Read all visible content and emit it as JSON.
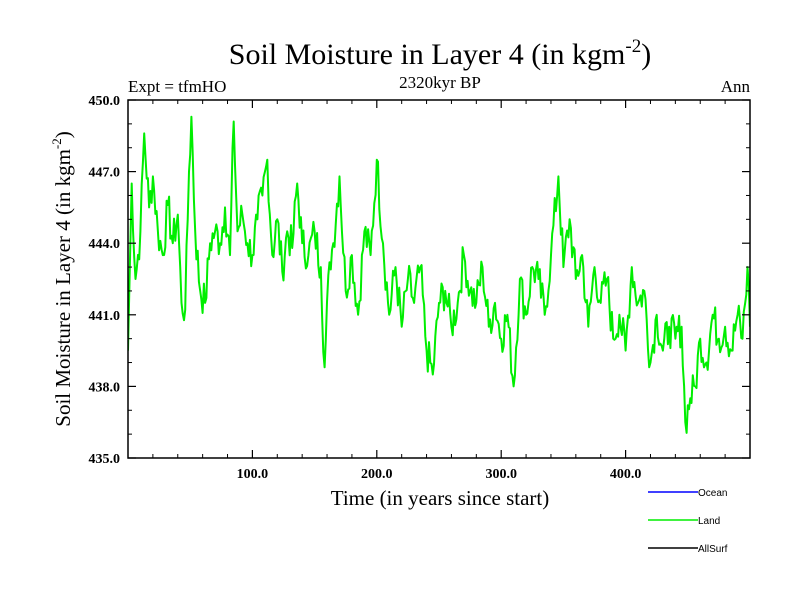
{
  "chart_data": {
    "type": "line",
    "title": "Soil Moisture in Layer 4 (in kgm",
    "title_sup": "-2",
    "title_close": ")",
    "subtitle_left": "Expt = tfmHO",
    "subtitle_center": "2320kyr BP",
    "subtitle_right": "Ann",
    "xlabel": "Time (in years since start)",
    "ylabel": "Soil Moisture in Layer 4 (in kgm",
    "ylabel_sup": "-2",
    "ylabel_close": ")",
    "xlim": [
      0,
      500
    ],
    "ylim": [
      435.0,
      450.0
    ],
    "xticks": [
      100,
      200,
      300,
      400
    ],
    "xtick_labels": [
      "100.0",
      "200.0",
      "300.0",
      "400.0"
    ],
    "yticks": [
      435,
      438,
      441,
      444,
      447,
      450
    ],
    "ytick_labels": [
      "435.0",
      "438.0",
      "441.0",
      "444.0",
      "447.0",
      "450.0"
    ],
    "legend": [
      {
        "name": "Ocean",
        "color": "#0000ff"
      },
      {
        "name": "Land",
        "color": "#00ee00"
      },
      {
        "name": "AllSurf",
        "color": "#000000"
      }
    ],
    "series": [
      {
        "name": "Land",
        "color": "#00ee00",
        "anchors": [
          [
            0,
            439.5
          ],
          [
            3,
            446.5
          ],
          [
            6,
            442.5
          ],
          [
            10,
            444.5
          ],
          [
            13,
            448.6
          ],
          [
            17,
            445.5
          ],
          [
            20,
            446.8
          ],
          [
            24,
            444.5
          ],
          [
            28,
            443.5
          ],
          [
            32,
            445.6
          ],
          [
            36,
            444.0
          ],
          [
            40,
            445.2
          ],
          [
            43,
            441.5
          ],
          [
            46,
            441.2
          ],
          [
            49,
            447.0
          ],
          [
            51,
            449.3
          ],
          [
            54,
            444.5
          ],
          [
            58,
            442.0
          ],
          [
            62,
            441.5
          ],
          [
            66,
            444.0
          ],
          [
            70,
            444.5
          ],
          [
            74,
            444.0
          ],
          [
            78,
            445.5
          ],
          [
            82,
            443.5
          ],
          [
            85,
            449.1
          ],
          [
            88,
            444.5
          ],
          [
            92,
            445.2
          ],
          [
            96,
            444.0
          ],
          [
            100,
            443.5
          ],
          [
            104,
            445.0
          ],
          [
            108,
            446.0
          ],
          [
            112,
            447.5
          ],
          [
            116,
            443.5
          ],
          [
            120,
            445.0
          ],
          [
            124,
            442.8
          ],
          [
            128,
            444.5
          ],
          [
            132,
            443.8
          ],
          [
            136,
            446.5
          ],
          [
            140,
            444.0
          ],
          [
            145,
            443.5
          ],
          [
            150,
            444.5
          ],
          [
            155,
            443.0
          ],
          [
            158,
            438.8
          ],
          [
            162,
            443.2
          ],
          [
            165,
            444.0
          ],
          [
            170,
            446.8
          ],
          [
            175,
            442.0
          ],
          [
            180,
            443.5
          ],
          [
            185,
            441.0
          ],
          [
            190,
            444.5
          ],
          [
            195,
            443.5
          ],
          [
            200,
            447.5
          ],
          [
            205,
            444.0
          ],
          [
            210,
            441.0
          ],
          [
            215,
            443.0
          ],
          [
            220,
            440.5
          ],
          [
            225,
            442.5
          ],
          [
            230,
            441.5
          ],
          [
            235,
            443.0
          ],
          [
            240,
            439.5
          ],
          [
            245,
            438.5
          ],
          [
            250,
            441.5
          ],
          [
            255,
            442.0
          ],
          [
            260,
            440.5
          ],
          [
            265,
            441.5
          ],
          [
            270,
            443.5
          ],
          [
            275,
            442.0
          ],
          [
            280,
            441.5
          ],
          [
            285,
            443.0
          ],
          [
            290,
            440.5
          ],
          [
            295,
            441.5
          ],
          [
            300,
            440.0
          ],
          [
            305,
            441.0
          ],
          [
            310,
            438.0
          ],
          [
            315,
            442.5
          ],
          [
            320,
            441.0
          ],
          [
            325,
            443.0
          ],
          [
            330,
            442.5
          ],
          [
            335,
            441.0
          ],
          [
            340,
            443.5
          ],
          [
            346,
            446.8
          ],
          [
            350,
            443.0
          ],
          [
            355,
            445.0
          ],
          [
            360,
            442.5
          ],
          [
            365,
            443.5
          ],
          [
            370,
            440.5
          ],
          [
            375,
            443.0
          ],
          [
            380,
            441.5
          ],
          [
            385,
            442.5
          ],
          [
            390,
            440.0
          ],
          [
            395,
            441.0
          ],
          [
            400,
            439.5
          ],
          [
            405,
            443.0
          ],
          [
            410,
            441.5
          ],
          [
            415,
            442.0
          ],
          [
            420,
            439.0
          ],
          [
            425,
            441.0
          ],
          [
            430,
            439.5
          ],
          [
            435,
            440.5
          ],
          [
            440,
            440.0
          ],
          [
            445,
            440.5
          ],
          [
            448,
            436.5
          ],
          [
            452,
            437.5
          ],
          [
            456,
            438.0
          ],
          [
            460,
            440.0
          ],
          [
            465,
            439.0
          ],
          [
            470,
            441.0
          ],
          [
            475,
            440.0
          ],
          [
            480,
            440.5
          ],
          [
            485,
            439.5
          ],
          [
            490,
            441.0
          ],
          [
            494,
            440.0
          ],
          [
            498,
            443.0
          ],
          [
            500,
            440.5
          ]
        ]
      }
    ]
  }
}
